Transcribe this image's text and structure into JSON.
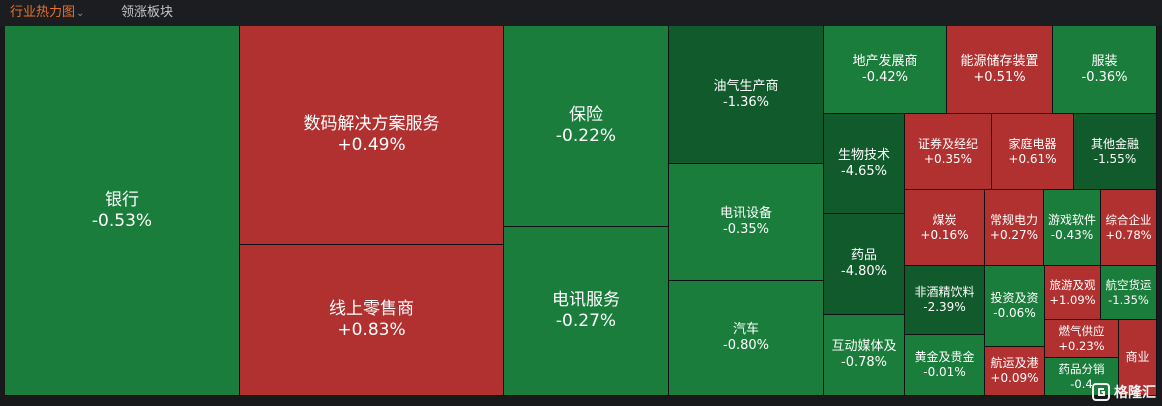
{
  "header": {
    "active_tab": "行业热力图",
    "other_tab": "领涨板块",
    "chevron": "chevron-down-icon"
  },
  "colors": {
    "up": "#b03130",
    "down": "#1a7d3b",
    "deep_down": "#105a2b",
    "active_tab": "#e5732f"
  },
  "tiles": {
    "yinhang": {
      "name": "银行",
      "change": "-0.53%"
    },
    "shuma": {
      "name": "数码解决方案服务",
      "change": "+0.49%"
    },
    "xianshang": {
      "name": "线上零售商",
      "change": "+0.83%"
    },
    "baoxian": {
      "name": "保险",
      "change": "-0.22%"
    },
    "dianxunfw": {
      "name": "电讯服务",
      "change": "-0.27%"
    },
    "youqi": {
      "name": "油气生产商",
      "change": "-1.36%"
    },
    "dianxunsb": {
      "name": "电讯设备",
      "change": "-0.35%"
    },
    "qiche": {
      "name": "汽车",
      "change": "-0.80%"
    },
    "dichan": {
      "name": "地产发展商",
      "change": "-0.42%"
    },
    "nengyuan": {
      "name": "能源储存装置",
      "change": "+0.51%"
    },
    "fuzhuang": {
      "name": "服装",
      "change": "-0.36%"
    },
    "shengwu": {
      "name": "生物技术",
      "change": "-4.65%"
    },
    "zhengquan": {
      "name": "证券及经纪",
      "change": "+0.35%"
    },
    "jiating": {
      "name": "家庭电器",
      "change": "+0.61%"
    },
    "qitajr": {
      "name": "其他金融",
      "change": "-1.55%"
    },
    "yaopin": {
      "name": "药品",
      "change": "-4.80%"
    },
    "meitan": {
      "name": "煤炭",
      "change": "+0.16%"
    },
    "changgui": {
      "name": "常规电力",
      "change": "+0.27%"
    },
    "youxi": {
      "name": "游戏软件",
      "change": "-0.43%"
    },
    "zonghe": {
      "name": "综合企业",
      "change": "+0.78%"
    },
    "feijiu": {
      "name": "非酒精饮料",
      "change": "-2.39%"
    },
    "touzi": {
      "name": "投资及资",
      "change": "-0.06%"
    },
    "lvyou": {
      "name": "旅游及观",
      "change": "+1.09%"
    },
    "hangkong": {
      "name": "航空货运",
      "change": "-1.35%"
    },
    "hudong": {
      "name": "互动媒体及",
      "change": "-0.78%"
    },
    "huangjin": {
      "name": "黄金及贵金",
      "change": "-0.01%"
    },
    "hangyun": {
      "name": "航运及港",
      "change": "+0.09%"
    },
    "ranqi": {
      "name": "燃气供应",
      "change": "+0.23%"
    },
    "yaopinfx": {
      "name": "药品分销",
      "change": "-0.4"
    },
    "shangye": {
      "name": "商业",
      "change": ""
    }
  },
  "watermark": {
    "text": "格隆汇",
    "icon": "gelonghui-logo-icon"
  }
}
